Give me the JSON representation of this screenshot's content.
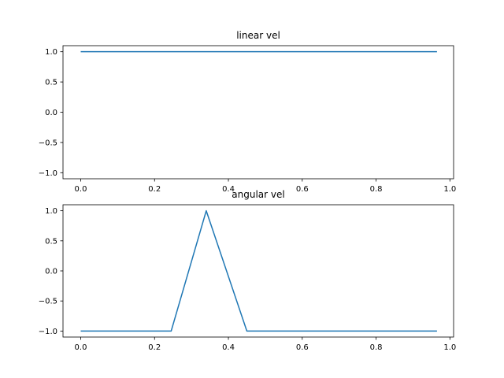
{
  "chart_data": [
    {
      "type": "line",
      "title": "linear vel",
      "xlabel": "",
      "ylabel": "",
      "xlim": [
        -0.048,
        1.01
      ],
      "ylim": [
        -1.1,
        1.1
      ],
      "xticks": [
        "0.0",
        "0.2",
        "0.4",
        "0.6",
        "0.8",
        "1.0"
      ],
      "yticks": [
        "1.0",
        "0.5",
        "0.0",
        "−0.5",
        "−1.0"
      ],
      "grid": false,
      "color": "#1f77b4",
      "series": [
        {
          "x": [
            0.0,
            0.965
          ],
          "y": [
            1.0,
            1.0
          ]
        }
      ]
    },
    {
      "type": "line",
      "title": "angular vel",
      "xlabel": "",
      "ylabel": "",
      "xlim": [
        -0.048,
        1.01
      ],
      "ylim": [
        -1.1,
        1.1
      ],
      "xticks": [
        "0.0",
        "0.2",
        "0.4",
        "0.6",
        "0.8",
        "1.0"
      ],
      "yticks": [
        "1.0",
        "0.5",
        "0.0",
        "−0.5",
        "−1.0"
      ],
      "grid": false,
      "color": "#1f77b4",
      "series": [
        {
          "x": [
            0.0,
            0.245,
            0.34,
            0.45,
            0.965
          ],
          "y": [
            -1.0,
            -1.0,
            1.0,
            -1.0,
            -1.0
          ]
        }
      ]
    }
  ]
}
